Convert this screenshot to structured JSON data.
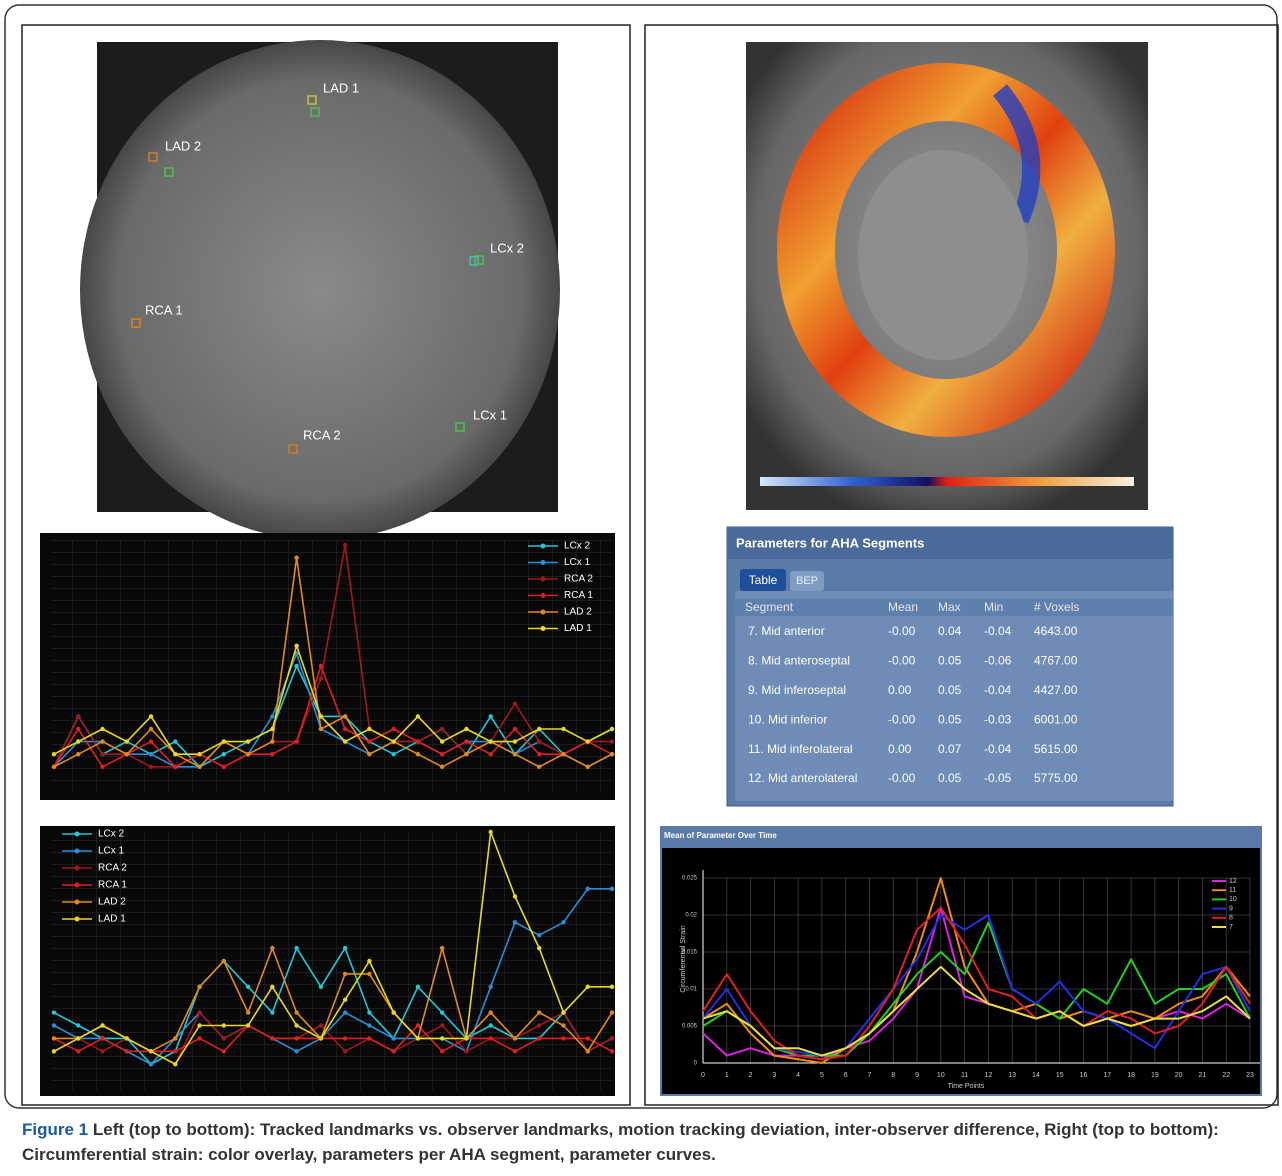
{
  "left_image": {
    "landmarks": [
      "LAD 1",
      "LAD 2",
      "LCx 2",
      "RCA 1",
      "RCA 2",
      "LCx 1"
    ]
  },
  "chart_data": [
    {
      "type": "line",
      "legend": "upper right",
      "ylim": [
        0,
        10
      ],
      "series": [
        {
          "name": "LCx 2",
          "color": "#22c8d8",
          "values": [
            1,
            3,
            1.5,
            2,
            1.5,
            2,
            1,
            1.5,
            2,
            2.5,
            5,
            3,
            3,
            2,
            1.5,
            2,
            2.5,
            1.5,
            3,
            1.5,
            2.5,
            1.5,
            2,
            2.5
          ]
        },
        {
          "name": "LCx 1",
          "color": "#2a8fd6",
          "values": [
            1,
            2,
            2,
            1.5,
            1.5,
            1,
            1,
            2,
            1.5,
            3,
            5.5,
            2.5,
            2,
            1.5,
            2,
            2,
            1.5,
            2,
            2,
            1.5,
            2,
            1.5,
            1,
            1.5
          ]
        },
        {
          "name": "RCA 2",
          "color": "#a01818",
          "values": [
            1,
            3,
            1.5,
            1.5,
            1,
            1,
            1.5,
            1,
            1.5,
            2,
            2,
            4.5,
            9.8,
            2.5,
            2,
            2,
            2.5,
            1.5,
            2,
            3.5,
            2,
            1.5,
            2,
            2
          ]
        },
        {
          "name": "RCA 1",
          "color": "#e02020",
          "values": [
            1,
            2.5,
            1,
            1.5,
            2,
            1,
            1.5,
            1,
            1.5,
            1.5,
            2,
            5,
            2.5,
            2,
            2.5,
            2,
            1.5,
            2,
            1.5,
            2.5,
            1.5,
            1.5,
            2,
            1.5
          ]
        },
        {
          "name": "LAD 2",
          "color": "#e08a20",
          "values": [
            1,
            1.5,
            2,
            1.5,
            2.5,
            1.5,
            1,
            2,
            1.5,
            2,
            9.3,
            2.5,
            3,
            1.5,
            2,
            1.5,
            1,
            1.5,
            2,
            1.5,
            1,
            1.5,
            1,
            1.5
          ]
        },
        {
          "name": "LAD 1",
          "color": "#e8d820",
          "values": [
            1.5,
            2,
            2.5,
            2,
            3,
            1.5,
            1.5,
            2,
            2,
            2.5,
            5.8,
            3,
            2,
            2.5,
            2,
            3,
            2,
            2.5,
            2,
            2,
            2.5,
            2.5,
            2,
            2.5
          ]
        }
      ]
    },
    {
      "type": "line",
      "legend": "upper left",
      "ylim": [
        0,
        10
      ],
      "series": [
        {
          "name": "LCx 2",
          "color": "#22c8d8",
          "values": [
            3,
            2.5,
            2,
            2,
            1,
            1.5,
            4,
            5,
            4,
            3,
            5.5,
            4,
            5.5,
            3,
            2,
            4,
            3,
            2,
            2.5,
            2,
            2,
            3,
            1.5,
            2
          ]
        },
        {
          "name": "LCx 1",
          "color": "#2a8fd6",
          "values": [
            2.5,
            2,
            2,
            1.5,
            1,
            2,
            3,
            2,
            2.5,
            2,
            1.5,
            2,
            3,
            2.5,
            2,
            2,
            2,
            1.5,
            4,
            6.5,
            6,
            6.5,
            7.8,
            7.8
          ]
        },
        {
          "name": "RCA 2",
          "color": "#a01818",
          "values": [
            1.5,
            2,
            1.5,
            2,
            1.5,
            1,
            3,
            2,
            2.5,
            2,
            2,
            2.5,
            1.5,
            2,
            1.5,
            2,
            2.5,
            1.5,
            2,
            2,
            2.5,
            3,
            1.5,
            2
          ]
        },
        {
          "name": "RCA 1",
          "color": "#e02020",
          "values": [
            2,
            1.5,
            2,
            1.5,
            1.5,
            1.5,
            2,
            1.5,
            2.5,
            2,
            2,
            2,
            2,
            2,
            1.5,
            2.5,
            1.5,
            2,
            2,
            1.5,
            2,
            2,
            2,
            1.5
          ]
        },
        {
          "name": "LAD 2",
          "color": "#e08a20",
          "values": [
            2,
            2,
            2.5,
            2,
            1.5,
            2,
            4,
            5,
            3,
            5.5,
            3,
            2,
            4.5,
            4.5,
            3,
            2,
            5.5,
            2,
            3,
            2,
            3,
            2.5,
            1.5,
            3
          ]
        },
        {
          "name": "LAD 1",
          "color": "#e8d820",
          "values": [
            1.5,
            2,
            2.5,
            2,
            1.5,
            1,
            2.5,
            2.5,
            2.5,
            4,
            2.5,
            2,
            3.5,
            5,
            3,
            2,
            2,
            2,
            10,
            7.5,
            5.5,
            3,
            4,
            4
          ]
        }
      ]
    },
    {
      "type": "line",
      "title": "Mean of Parameter Over Time",
      "x_label": "Time Points",
      "y_label": "Circumferential Strain",
      "legend": "upper right",
      "grid": true,
      "x": [
        0,
        1,
        2,
        3,
        4,
        5,
        6,
        7,
        8,
        9,
        10,
        11,
        12,
        13,
        14,
        15,
        16,
        17,
        18,
        19,
        20,
        21,
        22,
        23
      ],
      "xlim": [
        0,
        23
      ],
      "xticks": [
        0,
        1,
        2,
        3,
        4,
        5,
        6,
        7,
        8,
        9,
        10,
        11,
        12,
        13,
        14,
        15,
        16,
        17,
        18,
        19,
        20,
        21,
        22,
        23
      ],
      "ylim": [
        0,
        0.025
      ],
      "yticks": [
        0,
        0.005,
        0.01,
        0.015,
        0.02,
        0.025
      ],
      "series": [
        {
          "name": "12",
          "color": "#e020e0",
          "values": [
            0.004,
            0.001,
            0.002,
            0.001,
            0.001,
            0.0005,
            0.002,
            0.003,
            0.006,
            0.01,
            0.021,
            0.009,
            0.008,
            0.007,
            0.006,
            0.007,
            0.005,
            0.006,
            0.005,
            0.006,
            0.007,
            0.006,
            0.008,
            0.006
          ]
        },
        {
          "name": "11",
          "color": "#f08a10",
          "values": [
            0.006,
            0.008,
            0.004,
            0.001,
            0.0005,
            0,
            0.002,
            0.004,
            0.007,
            0.015,
            0.025,
            0.013,
            0.008,
            0.007,
            0.008,
            0.006,
            0.007,
            0.006,
            0.007,
            0.006,
            0.008,
            0.009,
            0.013,
            0.009
          ]
        },
        {
          "name": "10",
          "color": "#20d020",
          "values": [
            0.005,
            0.007,
            0.005,
            0.002,
            0.001,
            0.001,
            0.001,
            0.004,
            0.008,
            0.012,
            0.015,
            0.012,
            0.019,
            0.01,
            0.008,
            0.006,
            0.01,
            0.008,
            0.014,
            0.008,
            0.01,
            0.01,
            0.012,
            0.006
          ]
        },
        {
          "name": "9",
          "color": "#2030e8",
          "values": [
            0.006,
            0.01,
            0.005,
            0.002,
            0.0015,
            0.001,
            0.002,
            0.006,
            0.01,
            0.014,
            0.02,
            0.018,
            0.02,
            0.01,
            0.008,
            0.011,
            0.007,
            0.006,
            0.004,
            0.002,
            0.007,
            0.012,
            0.013,
            0.007
          ]
        },
        {
          "name": "8",
          "color": "#e02020",
          "values": [
            0.007,
            0.012,
            0.007,
            0.003,
            0.001,
            0.0005,
            0.001,
            0.005,
            0.01,
            0.018,
            0.021,
            0.016,
            0.01,
            0.009,
            0.006,
            0.007,
            0.005,
            0.007,
            0.006,
            0.004,
            0.005,
            0.008,
            0.013,
            0.008
          ]
        },
        {
          "name": "7",
          "color": "#e8e040",
          "values": [
            0.006,
            0.007,
            0.005,
            0.002,
            0.002,
            0.001,
            0.002,
            0.004,
            0.007,
            0.01,
            0.013,
            0.01,
            0.008,
            0.007,
            0.006,
            0.007,
            0.005,
            0.006,
            0.005,
            0.006,
            0.006,
            0.007,
            0.009,
            0.006
          ]
        }
      ]
    }
  ],
  "table": {
    "title": "Parameters for AHA Segments",
    "tabs": [
      "Table",
      "BEP"
    ],
    "columns": [
      "Segment",
      "Mean",
      "Max",
      "Min",
      "# Voxels"
    ],
    "rows": [
      [
        "7. Mid anterior",
        "-0.00",
        "0.04",
        "-0.04",
        "4643.00"
      ],
      [
        "8. Mid anteroseptal",
        "-0.00",
        "0.05",
        "-0.06",
        "4767.00"
      ],
      [
        "9. Mid inferoseptal",
        "0.00",
        "0.05",
        "-0.04",
        "4427.00"
      ],
      [
        "10. Mid inferior",
        "-0.00",
        "0.05",
        "-0.03",
        "6001.00"
      ],
      [
        "11. Mid inferolateral",
        "0.00",
        "0.07",
        "-0.04",
        "5615.00"
      ],
      [
        "12. Mid anterolateral",
        "-0.00",
        "0.05",
        "-0.05",
        "5775.00"
      ]
    ]
  },
  "caption": {
    "label": "Figure 1",
    "text": "Left (top to bottom): Tracked landmarks vs. observer landmarks, motion tracking deviation, inter-observer difference, Right (top to bottom): Circumferential strain: color overlay, parameters per AHA segment, parameter curves."
  }
}
